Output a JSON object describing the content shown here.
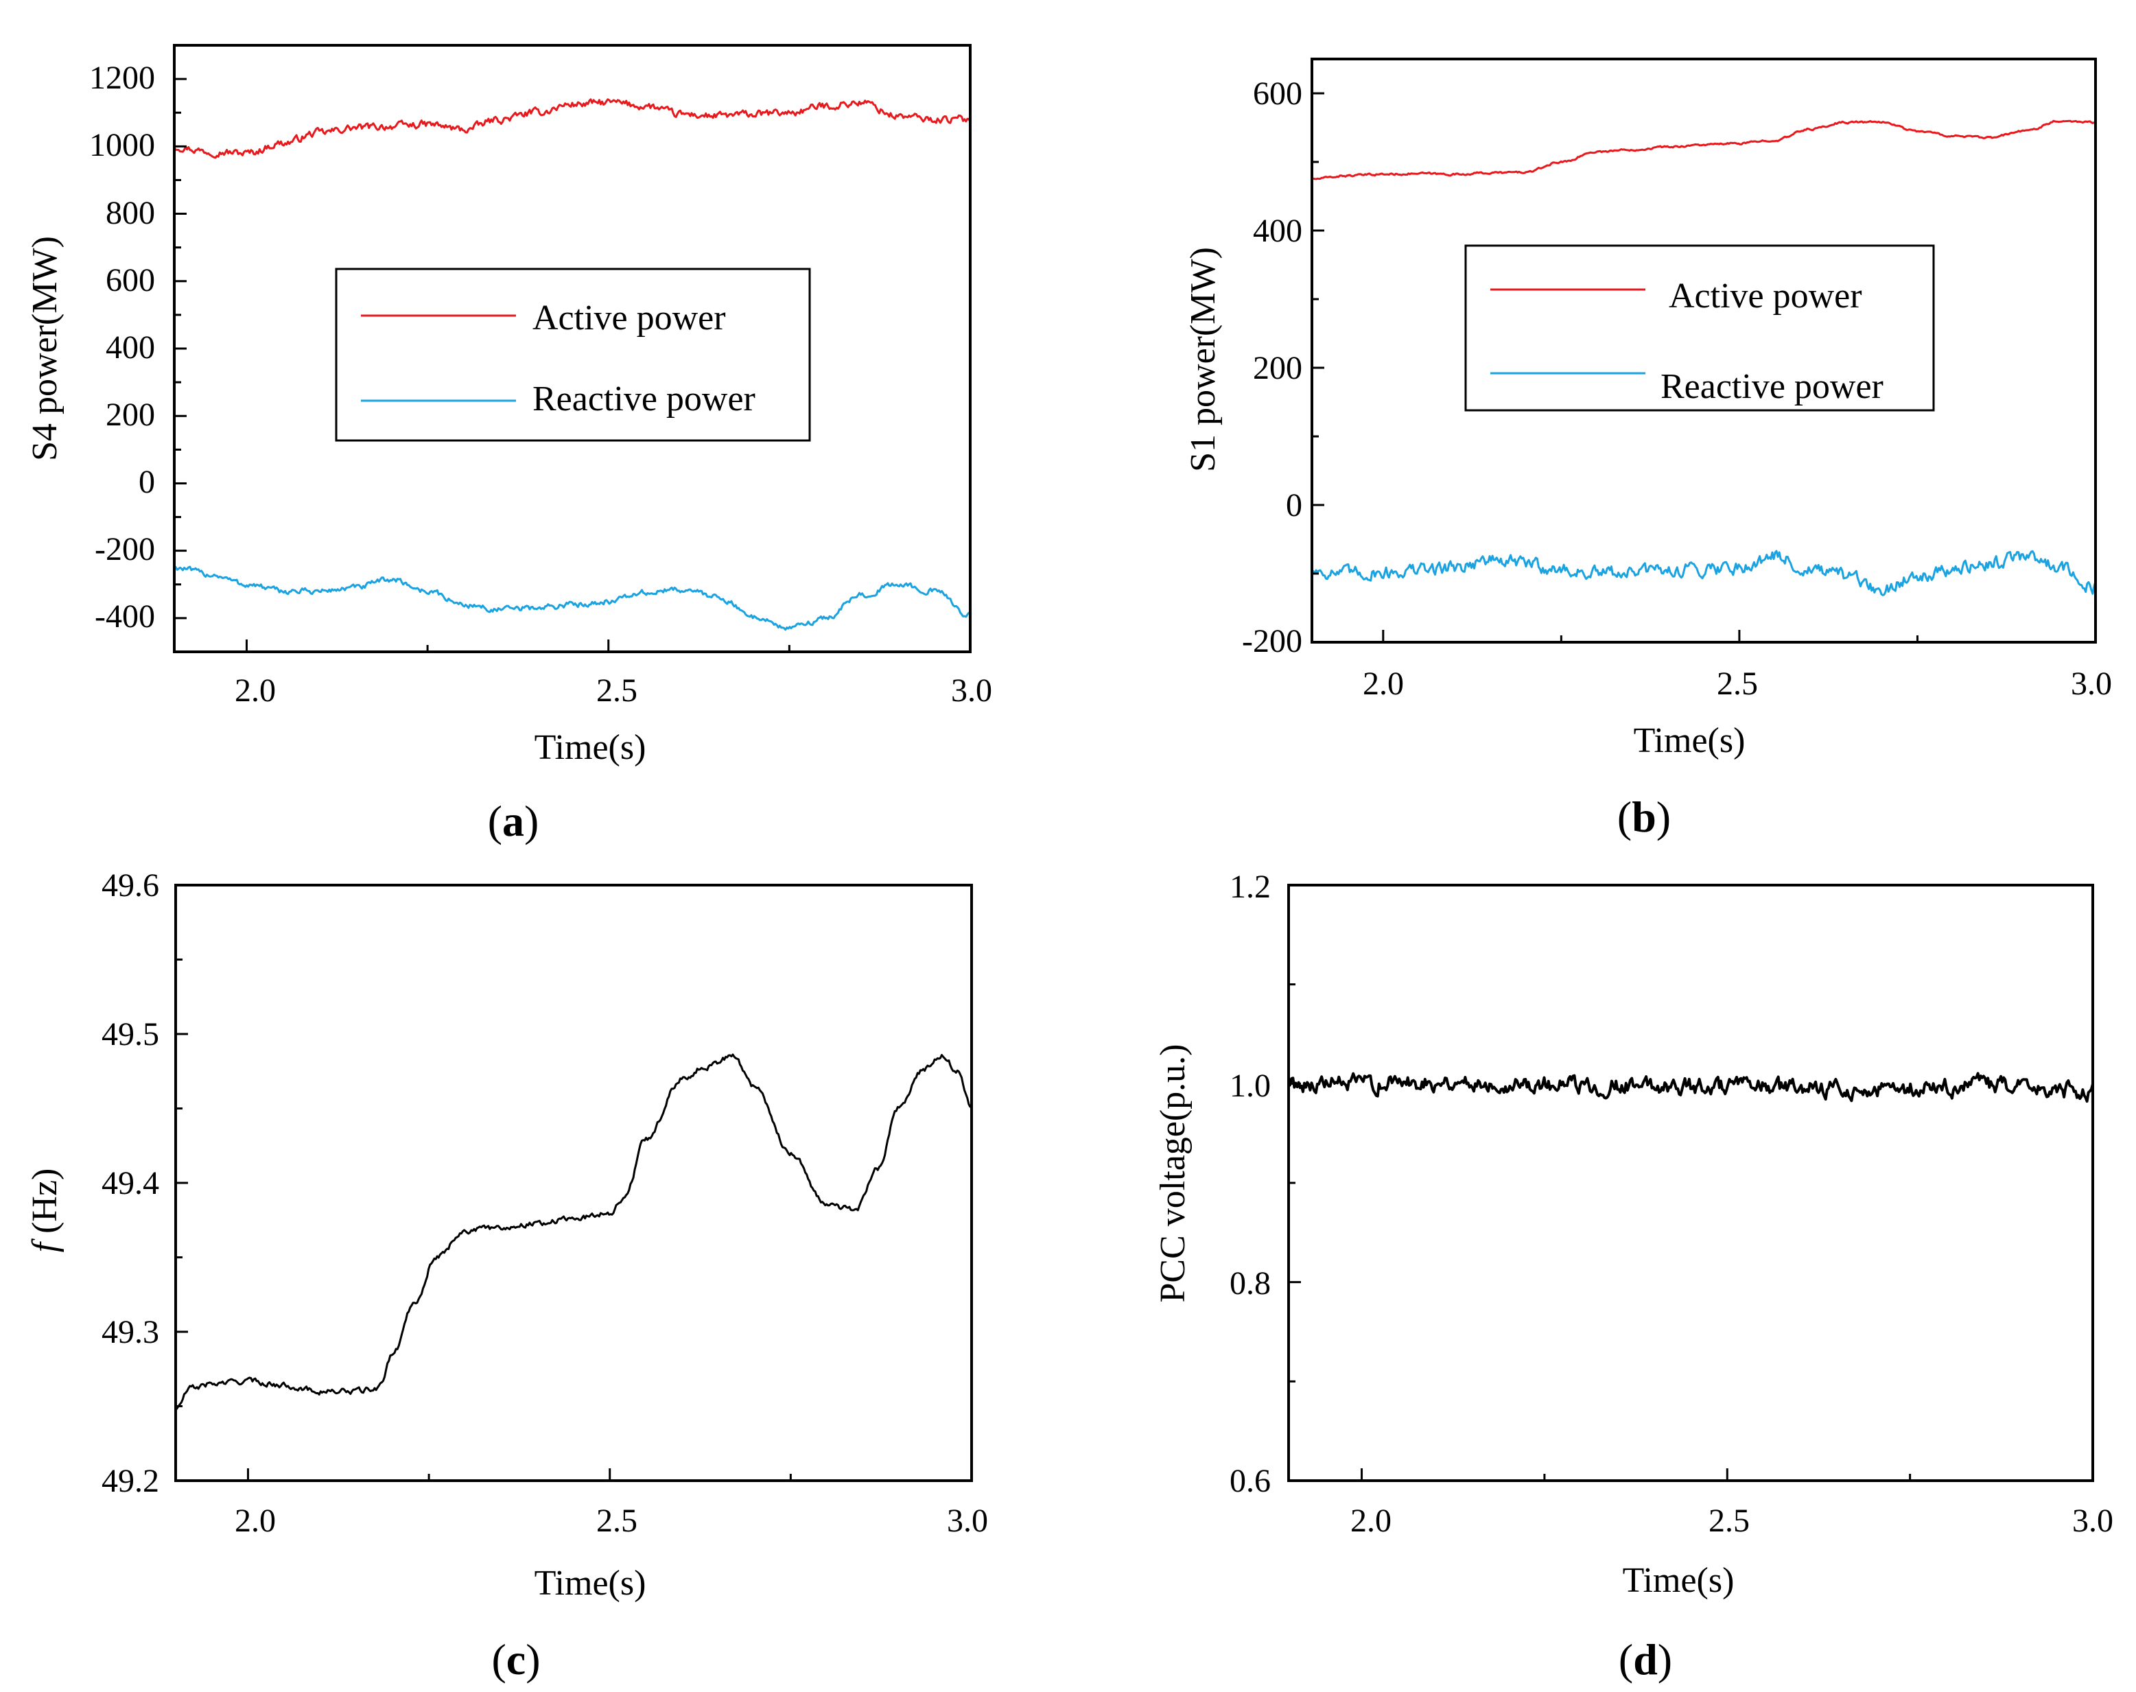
{
  "chart_data": [
    {
      "id": "a",
      "type": "line",
      "panel_label": "a",
      "xlabel": "Time(s)",
      "ylabel": "S4 power(MW)",
      "xlim": [
        1.9,
        3.0
      ],
      "ylim": [
        -500,
        1300
      ],
      "xticks": [
        2.0,
        2.5,
        3.0
      ],
      "xtick_labels": [
        "2.0",
        "2.5",
        "3.0"
      ],
      "yticks": [
        1200,
        1000,
        800,
        600,
        400,
        200,
        0,
        -200,
        -400
      ],
      "ytick_labels": [
        "1200",
        "1000",
        "800",
        "600",
        "400",
        "200",
        "0",
        "-200",
        "-400"
      ],
      "legend": {
        "position": "center",
        "entries": [
          "Active power",
          "Reactive power"
        ]
      },
      "series": [
        {
          "name": "Active power",
          "color": "#e8191c",
          "noise": 9,
          "x": [
            1.9,
            1.95,
            2.0,
            2.05,
            2.1,
            2.15,
            2.2,
            2.25,
            2.3,
            2.35,
            2.4,
            2.45,
            2.5,
            2.55,
            2.6,
            2.65,
            2.7,
            2.75,
            2.8,
            2.85,
            2.9,
            2.95,
            3.0
          ],
          "y": [
            1000,
            985,
            980,
            1010,
            1040,
            1055,
            1060,
            1065,
            1050,
            1080,
            1100,
            1125,
            1130,
            1120,
            1095,
            1090,
            1095,
            1100,
            1120,
            1130,
            1090,
            1080,
            1080
          ]
        },
        {
          "name": "Reactive power",
          "color": "#1aa3e0",
          "noise": 7,
          "x": [
            1.9,
            1.95,
            2.0,
            2.05,
            2.1,
            2.15,
            2.2,
            2.25,
            2.3,
            2.35,
            2.4,
            2.45,
            2.5,
            2.55,
            2.6,
            2.65,
            2.7,
            2.75,
            2.8,
            2.85,
            2.9,
            2.95,
            3.0
          ],
          "y": [
            -250,
            -270,
            -300,
            -320,
            -320,
            -310,
            -285,
            -320,
            -360,
            -375,
            -370,
            -360,
            -350,
            -325,
            -315,
            -335,
            -395,
            -430,
            -400,
            -330,
            -300,
            -320,
            -390
          ]
        }
      ]
    },
    {
      "id": "b",
      "type": "line",
      "panel_label": "b",
      "xlabel": "Time(s)",
      "ylabel": "S1 power(MW)",
      "xlim": [
        1.9,
        3.0
      ],
      "ylim": [
        -200,
        650
      ],
      "xticks": [
        2.0,
        2.5,
        3.0
      ],
      "xtick_labels": [
        "2.0",
        "2.5",
        "3.0"
      ],
      "yticks": [
        600,
        400,
        200,
        0,
        -200
      ],
      "ytick_labels": [
        "600",
        "400",
        "200",
        "0",
        "-200"
      ],
      "legend": {
        "position": "center",
        "entries": [
          "Active power",
          "Reactive power"
        ]
      },
      "series": [
        {
          "name": "Active power",
          "color": "#e8191c",
          "noise": 1.2,
          "x": [
            1.9,
            1.95,
            2.0,
            2.05,
            2.1,
            2.15,
            2.2,
            2.25,
            2.3,
            2.35,
            2.4,
            2.45,
            2.5,
            2.55,
            2.6,
            2.65,
            2.7,
            2.75,
            2.8,
            2.85,
            2.9,
            2.95,
            3.0
          ],
          "y": [
            475,
            480,
            482,
            483,
            482,
            484,
            485,
            500,
            515,
            518,
            522,
            525,
            527,
            532,
            548,
            558,
            558,
            545,
            538,
            535,
            545,
            560,
            558
          ]
        },
        {
          "name": "Reactive power",
          "color": "#1aa3e0",
          "noise": 8,
          "x": [
            1.9,
            1.95,
            2.0,
            2.05,
            2.1,
            2.15,
            2.2,
            2.25,
            2.3,
            2.35,
            2.4,
            2.45,
            2.5,
            2.55,
            2.6,
            2.65,
            2.7,
            2.75,
            2.8,
            2.85,
            2.9,
            2.95,
            3.0
          ],
          "y": [
            -95,
            -100,
            -98,
            -95,
            -90,
            -80,
            -85,
            -95,
            -100,
            -98,
            -95,
            -92,
            -90,
            -75,
            -95,
            -105,
            -125,
            -100,
            -95,
            -85,
            -75,
            -90,
            -120
          ]
        }
      ]
    },
    {
      "id": "c",
      "type": "line",
      "panel_label": "c",
      "xlabel": "Time(s)",
      "ylabel": "f (Hz)",
      "ylabel_italic": "f",
      "ylabel_rest": " (Hz)",
      "xlim": [
        1.9,
        3.0
      ],
      "ylim": [
        49.2,
        49.6
      ],
      "xticks": [
        2.0,
        2.5,
        3.0
      ],
      "xtick_labels": [
        "2.0",
        "2.5",
        "3.0"
      ],
      "yticks": [
        49.6,
        49.5,
        49.4,
        49.3,
        49.2
      ],
      "ytick_labels": [
        "49.6",
        "49.5",
        "49.4",
        "49.3",
        "49.2"
      ],
      "series": [
        {
          "name": "f",
          "color": "#000000",
          "noise": 0.0015,
          "x": [
            1.9,
            1.92,
            1.95,
            2.0,
            2.05,
            2.1,
            2.15,
            2.18,
            2.2,
            2.23,
            2.26,
            2.3,
            2.35,
            2.4,
            2.45,
            2.5,
            2.52,
            2.55,
            2.6,
            2.63,
            2.67,
            2.7,
            2.75,
            2.8,
            2.84,
            2.87,
            2.9,
            2.93,
            2.96,
            2.98,
            3.0
          ],
          "y": [
            49.248,
            49.262,
            49.265,
            49.267,
            49.264,
            49.26,
            49.26,
            49.262,
            49.285,
            49.32,
            49.35,
            49.368,
            49.37,
            49.373,
            49.376,
            49.38,
            49.39,
            49.43,
            49.47,
            49.478,
            49.485,
            49.465,
            49.42,
            49.385,
            49.382,
            49.41,
            49.45,
            49.475,
            49.485,
            49.475,
            49.45
          ]
        }
      ]
    },
    {
      "id": "d",
      "type": "line",
      "panel_label": "d",
      "xlabel": "Time(s)",
      "ylabel": "PCC voltage(p.u.)",
      "xlim": [
        1.9,
        3.0
      ],
      "ylim": [
        0.6,
        1.2
      ],
      "xticks": [
        2.0,
        2.5,
        3.0
      ],
      "xtick_labels": [
        "2.0",
        "2.5",
        "3.0"
      ],
      "yticks": [
        1.2,
        1.0,
        0.8,
        0.6
      ],
      "ytick_labels": [
        "1.2",
        "1.0",
        "0.8",
        "0.6"
      ],
      "series": [
        {
          "name": "PCC voltage",
          "color": "#000000",
          "noise": 0.007,
          "x": [
            1.9,
            2.0,
            2.1,
            2.2,
            2.3,
            2.4,
            2.5,
            2.6,
            2.7,
            2.8,
            2.85,
            2.9,
            3.0
          ],
          "y": [
            1.0,
            1.0,
            1.002,
            1.0,
            0.998,
            0.998,
            0.997,
            0.996,
            0.993,
            0.996,
            1.0,
            0.995,
            0.992
          ]
        }
      ]
    }
  ]
}
